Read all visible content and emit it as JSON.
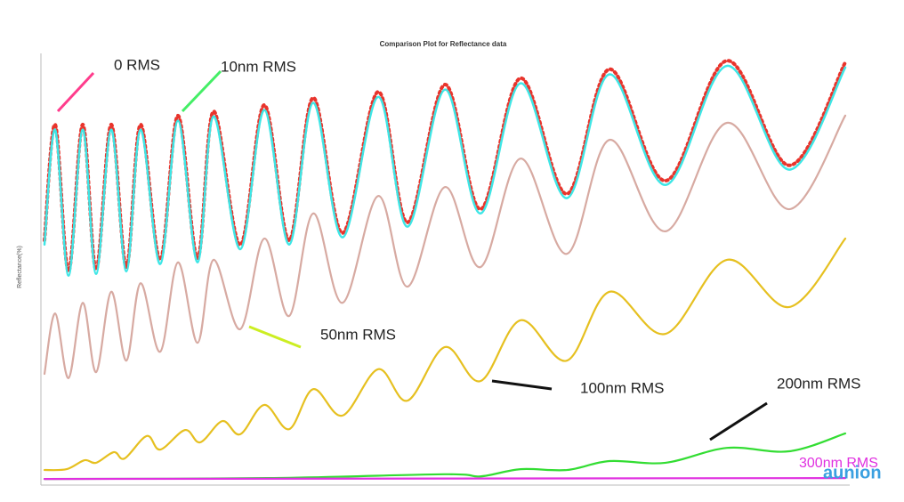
{
  "chart_data": {
    "type": "line",
    "title": "Comparison Plot for Reflectance data",
    "y_label": "Reflectance(%)",
    "xlim": [
      0,
      900
    ],
    "ylim": [
      0,
      100
    ],
    "series": [
      {
        "name": "0 RMS",
        "color": "#e8342c",
        "x": [
          0,
          12,
          27,
          43,
          58,
          75,
          92,
          108,
          130,
          150,
          172,
          190,
          220,
          247,
          275,
          302,
          335,
          375,
          408,
          450,
          490,
          535,
          587,
          635,
          698,
          767,
          837,
          900
        ],
        "values": [
          56.5,
          83.7,
          49.2,
          83.7,
          49.6,
          83.7,
          50.2,
          83.7,
          51.9,
          85.8,
          52.3,
          86.8,
          55.4,
          88.3,
          56.5,
          90.0,
          58.2,
          91.4,
          60.7,
          93.1,
          63.8,
          94.6,
          67.4,
          96.7,
          70.5,
          98.7,
          74.1,
          98.3
        ]
      },
      {
        "name": "10nm RMS",
        "color": "#3ee6e6",
        "x": [
          0,
          12,
          27,
          43,
          58,
          75,
          92,
          108,
          130,
          150,
          172,
          190,
          220,
          247,
          275,
          302,
          335,
          375,
          408,
          450,
          490,
          535,
          587,
          635,
          698,
          767,
          837,
          900
        ],
        "values": [
          55.5,
          82.5,
          48.2,
          82.5,
          48.6,
          82.5,
          49.2,
          82.5,
          50.9,
          84.6,
          51.3,
          85.6,
          54.4,
          87.1,
          55.5,
          88.8,
          57.2,
          90.2,
          59.7,
          91.9,
          62.8,
          93.4,
          66.4,
          95.5,
          69.5,
          97.5,
          73.1,
          97.1
        ]
      },
      {
        "name": "50nm RMS",
        "color": "#d7aaa2",
        "x": [
          0,
          12,
          27,
          43,
          58,
          75,
          92,
          108,
          130,
          150,
          172,
          190,
          220,
          247,
          275,
          302,
          335,
          375,
          408,
          450,
          490,
          535,
          587,
          635,
          698,
          767,
          837,
          900
        ],
        "values": [
          25.1,
          39.3,
          24.1,
          41.8,
          25.5,
          44.4,
          28.2,
          46.4,
          30.3,
          51.3,
          32.4,
          51.9,
          35.6,
          56.9,
          38.7,
          62.8,
          41.8,
          66.9,
          45.6,
          69.0,
          50.2,
          75.7,
          53.3,
          80.1,
          58.6,
          84.1,
          63.8,
          85.8
        ]
      },
      {
        "name": "100nm RMS",
        "color": "#e6c020",
        "x": [
          0,
          25,
          45,
          58,
          78,
          90,
          115,
          130,
          158,
          175,
          200,
          220,
          247,
          275,
          302,
          335,
          375,
          408,
          450,
          490,
          535,
          587,
          635,
          698,
          767,
          837,
          900
        ],
        "values": [
          2.5,
          2.7,
          4.8,
          4.2,
          6.7,
          5.2,
          10.5,
          7.3,
          11.9,
          9.0,
          14.0,
          10.9,
          17.8,
          12.1,
          21.5,
          15.3,
          26.2,
          18.8,
          31.4,
          23.4,
          37.7,
          28.2,
          44.4,
          34.5,
          51.9,
          40.8,
          56.9
        ]
      },
      {
        "name": "200nm RMS",
        "color": "#33dd33",
        "x": [
          0,
          250,
          450,
          490,
          535,
          587,
          635,
          698,
          767,
          837,
          900
        ],
        "values": [
          0.4,
          0.6,
          1.5,
          1.0,
          2.7,
          2.5,
          4.6,
          4.2,
          7.7,
          6.9,
          11.1
        ]
      },
      {
        "name": "300nm RMS",
        "color": "#e030e0",
        "x": [
          0,
          900
        ],
        "values": [
          0.4,
          0.6
        ]
      }
    ]
  },
  "branding": "aunion"
}
